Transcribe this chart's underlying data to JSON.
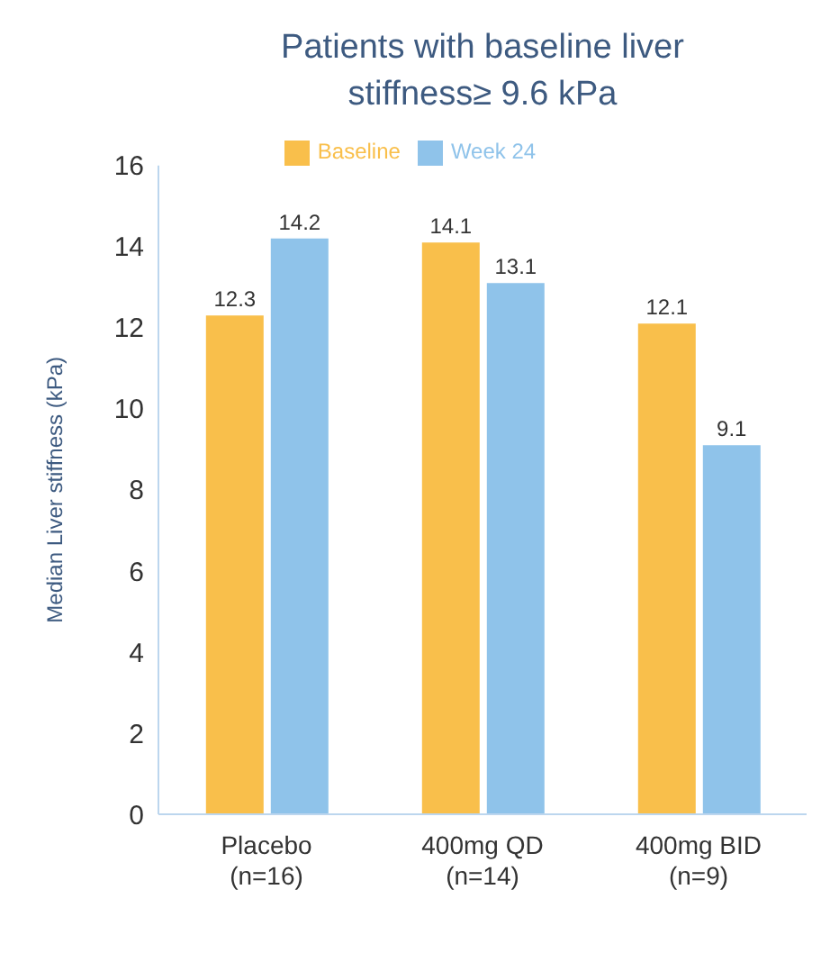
{
  "chart_data": {
    "type": "bar",
    "title": "Patients with baseline liver stiffness≥ 9.6 kPa",
    "ylabel": "Median Liver stiffness (kPa)",
    "categories": [
      "Placebo\n(n=16)",
      "400mg QD\n(n=14)",
      "400mg BID\n(n=9)"
    ],
    "series": [
      {
        "name": "Baseline",
        "color": "#f9bf4b",
        "values": [
          12.3,
          14.1,
          12.1
        ]
      },
      {
        "name": "Week 24",
        "color": "#8fc3ea",
        "values": [
          14.2,
          13.1,
          9.1
        ]
      }
    ],
    "ylim": [
      0,
      16
    ],
    "yticks": [
      0,
      2,
      4,
      6,
      8,
      10,
      12,
      14,
      16
    ],
    "grid": false,
    "legend": "top",
    "data_labels": true
  }
}
